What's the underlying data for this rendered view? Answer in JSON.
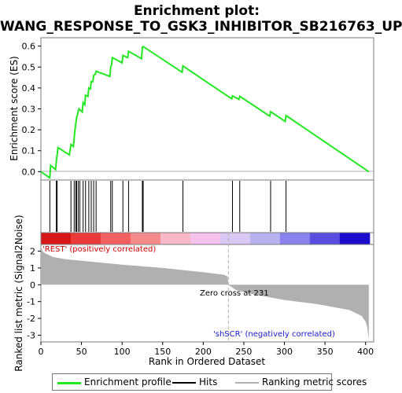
{
  "chart_data": {
    "type": "line",
    "title_line1": "Enrichment plot:",
    "title_line2": "WANG_RESPONSE_TO_GSK3_INHIBITOR_SB216763_UP",
    "xlabel": "Rank in Ordered Dataset",
    "es_ylabel": "Enrichment score (ES)",
    "metric_ylabel": "Ranked list metric (Signal2Noise)",
    "pos_label": "'REST' (positively correlated)",
    "neg_label": "'shSCR' (negatively correlated)",
    "zero_cross_label": "Zero cross at 231",
    "zero_cross": 231,
    "legend": [
      "Enrichment profile",
      "Hits",
      "Ranking metric scores"
    ],
    "xlim": [
      0,
      410
    ],
    "x_ticks": [
      0,
      50,
      100,
      150,
      200,
      250,
      300,
      350,
      400
    ],
    "es_ylim": [
      -0.04,
      0.64
    ],
    "es_ticks": [
      "0.0",
      "0.1",
      "0.2",
      "0.3",
      "0.4",
      "0.5",
      "0.6"
    ],
    "metric_ylim": [
      -3.4,
      2.4
    ],
    "metric_ticks": [
      "-3",
      "-2",
      "-1",
      "0",
      "1",
      "2"
    ],
    "n_genes": 405,
    "hits": [
      11,
      19,
      20,
      37,
      41,
      43,
      44,
      46,
      48,
      52,
      55,
      59,
      62,
      65,
      68,
      86,
      88,
      101,
      108,
      125,
      126,
      175,
      236,
      245,
      283,
      302
    ],
    "es_profile": {
      "x": [
        0,
        11,
        12,
        18,
        19,
        20,
        21,
        35,
        37,
        40,
        41,
        42,
        43,
        44,
        45,
        46,
        47,
        48,
        51,
        52,
        54,
        55,
        58,
        59,
        61,
        62,
        64,
        65,
        67,
        68,
        85,
        86,
        87,
        88,
        100,
        101,
        107,
        108,
        124,
        125,
        126,
        174,
        175,
        235,
        236,
        244,
        245,
        282,
        283,
        301,
        302,
        404
      ],
      "y": [
        0.0,
        -0.03,
        0.03,
        0.01,
        0.05,
        0.08,
        0.115,
        0.08,
        0.13,
        0.12,
        0.16,
        0.2,
        0.23,
        0.26,
        0.27,
        0.29,
        0.3,
        0.295,
        0.285,
        0.33,
        0.32,
        0.365,
        0.36,
        0.4,
        0.395,
        0.43,
        0.43,
        0.46,
        0.465,
        0.48,
        0.455,
        0.5,
        0.51,
        0.545,
        0.52,
        0.555,
        0.545,
        0.575,
        0.54,
        0.595,
        0.598,
        0.475,
        0.505,
        0.348,
        0.362,
        0.345,
        0.36,
        0.265,
        0.287,
        0.24,
        0.268,
        0.0
      ]
    },
    "metric_profile": {
      "x": [
        0,
        2,
        5,
        15,
        30,
        60,
        100,
        150,
        200,
        225,
        230,
        231,
        240,
        260,
        300,
        340,
        380,
        395,
        400,
        402,
        404
      ],
      "y": [
        2.3,
        2.0,
        1.88,
        1.65,
        1.52,
        1.38,
        1.2,
        1.0,
        0.75,
        0.6,
        0.5,
        0.0,
        -0.3,
        -0.55,
        -0.9,
        -1.15,
        -1.5,
        -1.85,
        -2.2,
        -2.5,
        -3.3
      ]
    },
    "color_bar": [
      "#d81818",
      "#ea3a3a",
      "#f26060",
      "#f58a8a",
      "#f8b8c8",
      "#f4c2ec",
      "#d9c8f4",
      "#b8b2f0",
      "#8a82ec",
      "#5a4ee0",
      "#1a0ccc"
    ],
    "colors": {
      "profile": "#22e822",
      "hit": "#000000",
      "metric": "#b0b0b0",
      "frame": "#7a7a7a"
    }
  }
}
